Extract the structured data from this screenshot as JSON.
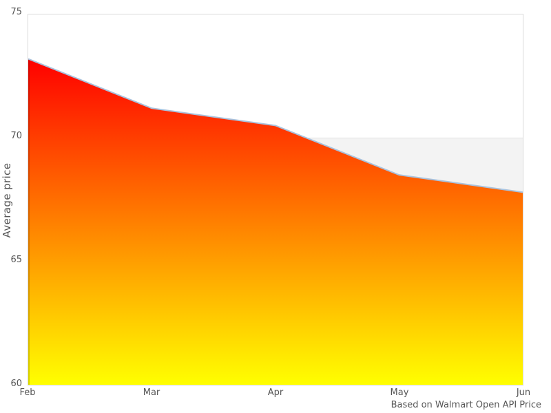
{
  "chart_data": {
    "type": "area",
    "title": "",
    "categories": [
      "Feb",
      "Mar",
      "Apr",
      "May",
      "Jun"
    ],
    "values": [
      73.2,
      71.2,
      70.5,
      68.5,
      67.8
    ],
    "series_name": "Average price",
    "xlabel": "",
    "ylabel": "Average price",
    "ylim": [
      60,
      75
    ],
    "yticks": [
      60,
      65,
      70,
      75
    ],
    "alternate_band": {
      "from": 65,
      "to": 70
    },
    "gridlines": "none visible except plot top border and band top edge at 70",
    "legend": "none",
    "caption": "Based on Walmart Open API Price"
  },
  "colors": {
    "area_gradient_top": "#ff0000",
    "area_gradient_bottom": "#ffff00",
    "series_line": "#a9c2dd",
    "band_fill": "#f3f3f3",
    "gridline": "#e1e1e1",
    "plot_border": "#d9d9d9",
    "axis_text": "#555555",
    "left_edge_shade": "rgba(0,0,0,0.16)"
  }
}
